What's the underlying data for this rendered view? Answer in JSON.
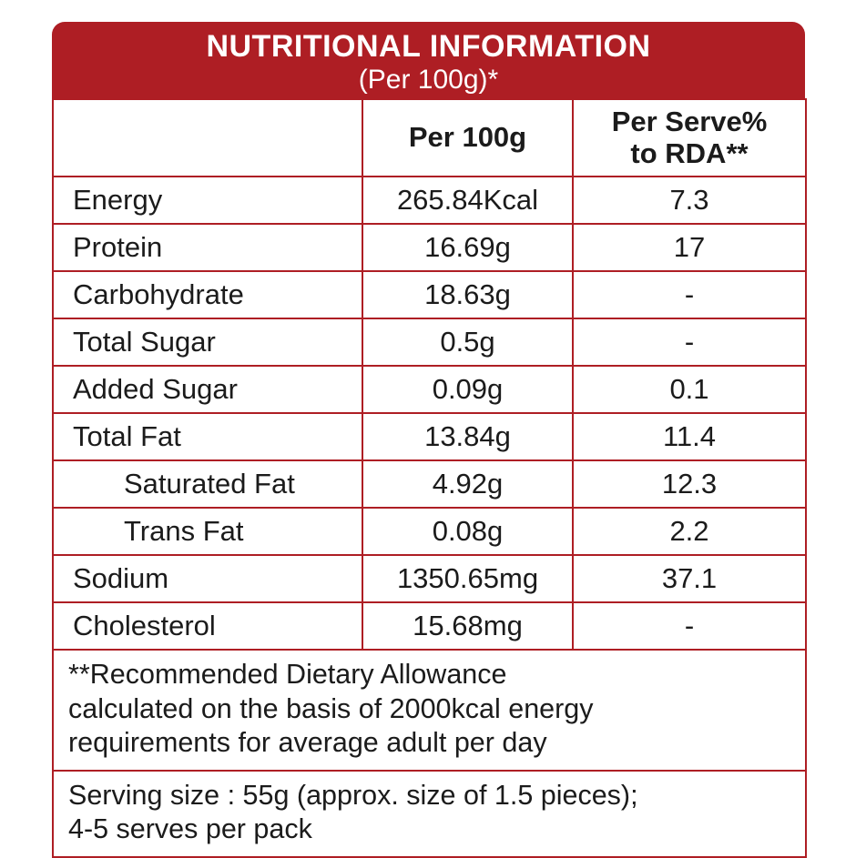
{
  "label": {
    "title": "NUTRITIONAL INFORMATION",
    "subtitle": "(Per 100g)*"
  },
  "table": {
    "columns": {
      "nutrient": "",
      "per_100g": "Per 100g",
      "per_serve_line1": "Per Serve%",
      "per_serve_line2": "to RDA**"
    },
    "rows": [
      {
        "label": "Energy",
        "per_100g": "265.84Kcal",
        "per_serve": "7.3",
        "indent": false
      },
      {
        "label": "Protein",
        "per_100g": "16.69g",
        "per_serve": "17",
        "indent": false
      },
      {
        "label": "Carbohydrate",
        "per_100g": "18.63g",
        "per_serve": "-",
        "indent": false
      },
      {
        "label": "Total Sugar",
        "per_100g": "0.5g",
        "per_serve": "-",
        "indent": false
      },
      {
        "label": "Added Sugar",
        "per_100g": "0.09g",
        "per_serve": "0.1",
        "indent": false
      },
      {
        "label": "Total Fat",
        "per_100g": "13.84g",
        "per_serve": "11.4",
        "indent": false
      },
      {
        "label": "Saturated Fat",
        "per_100g": "4.92g",
        "per_serve": "12.3",
        "indent": true
      },
      {
        "label": "Trans Fat",
        "per_100g": "0.08g",
        "per_serve": "2.2",
        "indent": true
      },
      {
        "label": "Sodium",
        "per_100g": "1350.65mg",
        "per_serve": "37.1",
        "indent": false
      },
      {
        "label": "Cholesterol",
        "per_100g": "15.68mg",
        "per_serve": "-",
        "indent": false
      }
    ]
  },
  "notes": {
    "rda_lines": [
      "**Recommended Dietary Allowance",
      "calculated on the basis of 2000kcal energy",
      "requirements for average adult per day"
    ],
    "serving_lines": [
      "Serving size : 55g (approx. size of 1.5 pieces);",
      "4-5 serves per pack"
    ]
  },
  "colors": {
    "brand_red": "#AE1E24",
    "text": "#1B1B1B",
    "background": "#FFFFFF"
  }
}
